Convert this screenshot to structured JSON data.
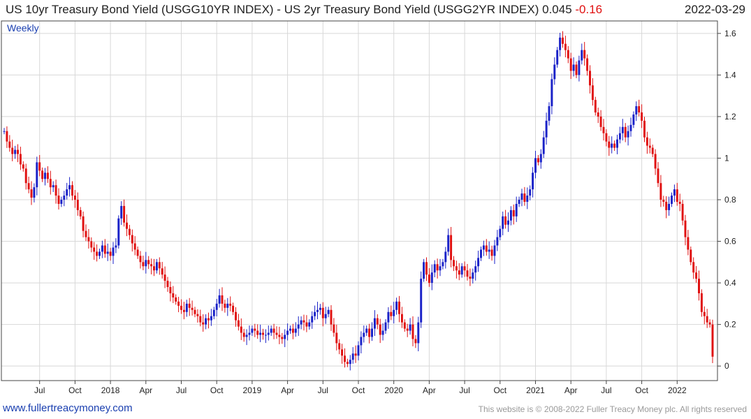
{
  "header": {
    "title": "US 10yr Treasury Bond Yield (USGG10YR INDEX) - US 2yr Treasury Bond Yield (USGG2YR INDEX)",
    "last_value": "0.045",
    "change": "-0.16",
    "date": "2022-03-29"
  },
  "footer": {
    "site": "www.fullertreacymoney.com",
    "copyright": "This website is © 2008-2022 Fuller Treacy Money plc. All rights reserved"
  },
  "colors": {
    "up": "#1a22c8",
    "down": "#e01010",
    "grid": "#d8d8d8"
  },
  "chart_data": {
    "type": "candlestick",
    "period": "Weekly",
    "ylim": [
      -0.07,
      1.66
    ],
    "y_ticks": [
      0,
      0.2,
      0.4,
      0.6,
      0.8,
      1,
      1.2,
      1.4,
      1.6
    ],
    "y_tick_labels": [
      "0",
      "0.2",
      "0.4",
      "0.6",
      "0.8",
      "1",
      "1.2",
      "1.4",
      "1.6"
    ],
    "x_ticks": [
      {
        "label": "Jul",
        "i": 13
      },
      {
        "label": "Oct",
        "i": 26
      },
      {
        "label": "2018",
        "i": 39
      },
      {
        "label": "Apr",
        "i": 52
      },
      {
        "label": "Jul",
        "i": 65
      },
      {
        "label": "Oct",
        "i": 78
      },
      {
        "label": "2019",
        "i": 91
      },
      {
        "label": "Apr",
        "i": 104
      },
      {
        "label": "Jul",
        "i": 117
      },
      {
        "label": "Oct",
        "i": 130
      },
      {
        "label": "2020",
        "i": 143
      },
      {
        "label": "Apr",
        "i": 156
      },
      {
        "label": "Jul",
        "i": 169
      },
      {
        "label": "Oct",
        "i": 182
      },
      {
        "label": "2021",
        "i": 195
      },
      {
        "label": "Apr",
        "i": 208
      },
      {
        "label": "Jul",
        "i": 221
      },
      {
        "label": "Oct",
        "i": 234
      },
      {
        "label": "2022",
        "i": 247
      }
    ],
    "last_index": 260,
    "closes": [
      1.13,
      1.08,
      1.05,
      1.02,
      1.04,
      1.02,
      0.97,
      0.95,
      0.88,
      0.85,
      0.81,
      0.86,
      0.98,
      0.94,
      0.9,
      0.93,
      0.9,
      0.86,
      0.87,
      0.82,
      0.78,
      0.8,
      0.82,
      0.85,
      0.87,
      0.82,
      0.8,
      0.75,
      0.72,
      0.65,
      0.62,
      0.6,
      0.57,
      0.55,
      0.53,
      0.55,
      0.58,
      0.54,
      0.55,
      0.53,
      0.57,
      0.58,
      0.71,
      0.77,
      0.69,
      0.66,
      0.63,
      0.59,
      0.56,
      0.53,
      0.5,
      0.48,
      0.51,
      0.49,
      0.48,
      0.46,
      0.5,
      0.47,
      0.44,
      0.41,
      0.38,
      0.35,
      0.33,
      0.31,
      0.29,
      0.27,
      0.26,
      0.3,
      0.28,
      0.27,
      0.25,
      0.24,
      0.21,
      0.2,
      0.23,
      0.22,
      0.24,
      0.27,
      0.3,
      0.34,
      0.3,
      0.28,
      0.3,
      0.29,
      0.26,
      0.22,
      0.19,
      0.16,
      0.14,
      0.15,
      0.16,
      0.18,
      0.17,
      0.15,
      0.16,
      0.15,
      0.15,
      0.16,
      0.18,
      0.16,
      0.15,
      0.14,
      0.13,
      0.15,
      0.17,
      0.18,
      0.16,
      0.18,
      0.2,
      0.22,
      0.21,
      0.19,
      0.21,
      0.24,
      0.26,
      0.27,
      0.28,
      0.23,
      0.25,
      0.27,
      0.2,
      0.16,
      0.11,
      0.08,
      0.05,
      0.02,
      0.01,
      0.03,
      0.06,
      0.05,
      0.1,
      0.14,
      0.16,
      0.18,
      0.14,
      0.18,
      0.23,
      0.2,
      0.15,
      0.17,
      0.21,
      0.26,
      0.24,
      0.27,
      0.31,
      0.25,
      0.21,
      0.18,
      0.17,
      0.2,
      0.13,
      0.11,
      0.21,
      0.42,
      0.5,
      0.44,
      0.4,
      0.45,
      0.49,
      0.46,
      0.48,
      0.5,
      0.55,
      0.63,
      0.51,
      0.48,
      0.46,
      0.44,
      0.48,
      0.46,
      0.43,
      0.42,
      0.45,
      0.48,
      0.52,
      0.56,
      0.58,
      0.55,
      0.56,
      0.53,
      0.58,
      0.62,
      0.66,
      0.72,
      0.68,
      0.7,
      0.75,
      0.72,
      0.78,
      0.8,
      0.83,
      0.79,
      0.82,
      0.85,
      0.93,
      1.0,
      0.98,
      1.02,
      1.1,
      1.18,
      1.25,
      1.38,
      1.45,
      1.52,
      1.58,
      1.55,
      1.52,
      1.48,
      1.42,
      1.45,
      1.4,
      1.47,
      1.52,
      1.48,
      1.42,
      1.35,
      1.28,
      1.22,
      1.2,
      1.15,
      1.12,
      1.08,
      1.05,
      1.07,
      1.05,
      1.09,
      1.12,
      1.15,
      1.1,
      1.13,
      1.16,
      1.21,
      1.25,
      1.22,
      1.18,
      1.1,
      1.06,
      1.05,
      1.02,
      0.95,
      0.88,
      0.8,
      0.79,
      0.75,
      0.78,
      0.82,
      0.85,
      0.79,
      0.78,
      0.7,
      0.62,
      0.56,
      0.5,
      0.45,
      0.42,
      0.35,
      0.26,
      0.24,
      0.21,
      0.2,
      0.045
    ]
  }
}
